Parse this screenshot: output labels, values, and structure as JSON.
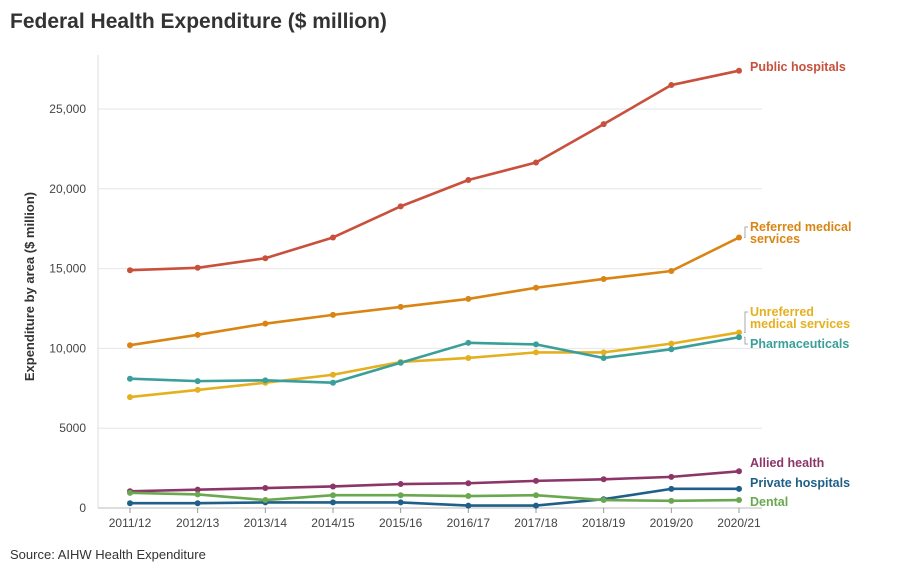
{
  "title": "Federal Health Expenditure ($ million)",
  "source": "Source: AIHW Health Expenditure",
  "chart_data": {
    "type": "line",
    "title": "Federal Health Expenditure ($ million)",
    "ylabel": "Expenditure by area ($ million)",
    "xlabel": "",
    "x": [
      "2011/12",
      "2012/13",
      "2013/14",
      "2014/15",
      "2015/16",
      "2016/17",
      "2017/18",
      "2018/19",
      "2019/20",
      "2020/21"
    ],
    "ylim": [
      0,
      28000
    ],
    "yticks": [
      0,
      5000,
      10000,
      15000,
      20000,
      25000
    ],
    "ytick_labels": [
      "0",
      "5000",
      "10,000",
      "15,000",
      "20,000",
      "25,000"
    ],
    "grid": "horizontal",
    "legend": "direct labels at line ends",
    "series": [
      {
        "name": "Public hospitals",
        "color": "#c8503c",
        "label_lines": [
          "Public hospitals"
        ],
        "values": [
          14900,
          15050,
          15650,
          16950,
          18900,
          20550,
          21650,
          24050,
          26500,
          27400
        ]
      },
      {
        "name": "Referred medical services",
        "color": "#d98514",
        "label_lines": [
          "Referred medical",
          "services"
        ],
        "values": [
          10200,
          10850,
          11550,
          12100,
          12600,
          13100,
          13800,
          14350,
          14850,
          16950
        ]
      },
      {
        "name": "Unreferred medical services",
        "color": "#e5b020",
        "label_lines": [
          "Unreferred",
          "medical services"
        ],
        "values": [
          6950,
          7400,
          7850,
          8350,
          9150,
          9400,
          9750,
          9750,
          10300,
          11000
        ]
      },
      {
        "name": "Pharmaceuticals",
        "color": "#3a9e9a",
        "label_lines": [
          "Pharmaceuticals"
        ],
        "values": [
          8100,
          7950,
          8000,
          7850,
          9100,
          10350,
          10250,
          9400,
          9950,
          10700
        ]
      },
      {
        "name": "Allied health",
        "color": "#8c3567",
        "label_lines": [
          "Allied health"
        ],
        "values": [
          1050,
          1150,
          1250,
          1350,
          1500,
          1550,
          1700,
          1800,
          1950,
          2300
        ]
      },
      {
        "name": "Private hospitals",
        "color": "#1f5f88",
        "label_lines": [
          "Private hospitals"
        ],
        "values": [
          300,
          300,
          350,
          350,
          350,
          150,
          150,
          550,
          1200,
          1200
        ]
      },
      {
        "name": "Dental",
        "color": "#6aa84f",
        "label_lines": [
          "Dental"
        ],
        "values": [
          950,
          850,
          500,
          800,
          800,
          750,
          800,
          500,
          450,
          500
        ]
      }
    ]
  }
}
